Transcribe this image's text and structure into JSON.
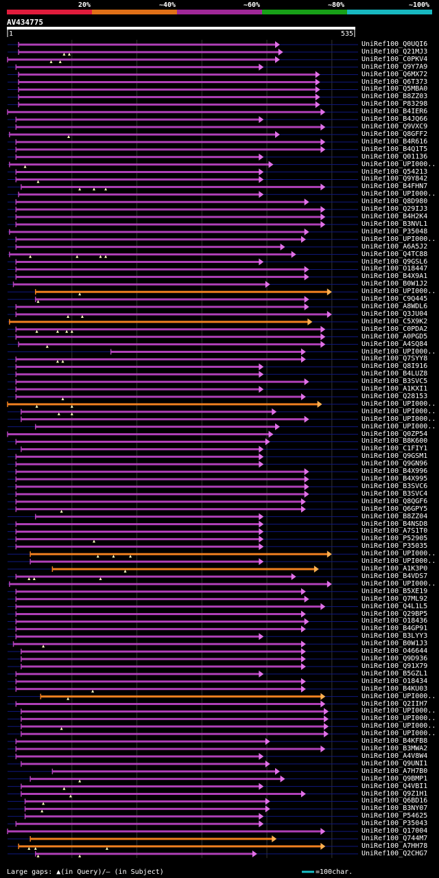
{
  "header": {
    "identity_scale": [
      {
        "label": "20%",
        "color": "#e01c3c"
      },
      {
        "label": "~40%",
        "color": "#e07018"
      },
      {
        "label": "~60%",
        "color": "#a02898"
      },
      {
        "label": "~80%",
        "color": "#18a018"
      },
      {
        "label": "~100%",
        "color": "#18b8c0"
      }
    ],
    "query_name": "AV434775",
    "ruler_start": "1",
    "ruler_end": "535"
  },
  "footer": {
    "large_gaps_text": "Large gaps: ▲(in Query)/– (in Subject)",
    "scale_text": "=100char."
  },
  "colors": {
    "magenta": "#b040b8",
    "orange": "#f08020",
    "magenta_head": "#e070e8",
    "orange_head": "#ffb050",
    "line": "#101880",
    "grid": "#333333",
    "gap_marker": "#ffffc0"
  },
  "chart_data": {
    "type": "alignment",
    "query_length": 535,
    "hits": [
      {
        "name": "UniRef100_Q0UQI6",
        "qs": 18,
        "qe": 420,
        "color": "magenta",
        "gaps": []
      },
      {
        "name": "UniRef100_Q21MJ3",
        "qs": 18,
        "qe": 425,
        "color": "magenta",
        "gaps": [
          88,
          96
        ]
      },
      {
        "name": "UniRef100_C0PKV4",
        "qs": 1,
        "qe": 420,
        "color": "magenta",
        "gaps": [
          68,
          82
        ]
      },
      {
        "name": "UniRef100_Q9Y7A9",
        "qs": 14,
        "qe": 395,
        "color": "magenta",
        "gaps": []
      },
      {
        "name": "UniRef100_Q6MX72",
        "qs": 18,
        "qe": 482,
        "color": "magenta",
        "gaps": []
      },
      {
        "name": "UniRef100_Q6T373",
        "qs": 18,
        "qe": 482,
        "color": "magenta",
        "gaps": []
      },
      {
        "name": "UniRef100_Q5MBA0",
        "qs": 18,
        "qe": 482,
        "color": "magenta",
        "gaps": []
      },
      {
        "name": "UniRef100_B8ZZ03",
        "qs": 18,
        "qe": 482,
        "color": "magenta",
        "gaps": []
      },
      {
        "name": "UniRef100_P83298",
        "qs": 18,
        "qe": 482,
        "color": "magenta",
        "gaps": []
      },
      {
        "name": "UniRef100_B4IER6",
        "qs": 1,
        "qe": 490,
        "color": "magenta",
        "gaps": []
      },
      {
        "name": "UniRef100_B4JQ66",
        "qs": 14,
        "qe": 395,
        "color": "magenta",
        "gaps": []
      },
      {
        "name": "UniRef100_Q9VXC9",
        "qs": 14,
        "qe": 490,
        "color": "magenta",
        "gaps": []
      },
      {
        "name": "UniRef100_Q8GFF2",
        "qs": 4,
        "qe": 420,
        "color": "magenta",
        "gaps": [
          95
        ]
      },
      {
        "name": "UniRef100_B4R616",
        "qs": 14,
        "qe": 490,
        "color": "magenta",
        "gaps": []
      },
      {
        "name": "UniRef100_B4Q1T5",
        "qs": 14,
        "qe": 490,
        "color": "magenta",
        "gaps": []
      },
      {
        "name": "UniRef100_Q01136",
        "qs": 14,
        "qe": 395,
        "color": "magenta",
        "gaps": []
      },
      {
        "name": "UniRef100_UPI000..",
        "qs": 4,
        "qe": 410,
        "color": "magenta",
        "gaps": [
          28
        ]
      },
      {
        "name": "UniRef100_Q54213",
        "qs": 14,
        "qe": 395,
        "color": "magenta",
        "gaps": []
      },
      {
        "name": "UniRef100_Q9Y842",
        "qs": 14,
        "qe": 395,
        "color": "magenta",
        "gaps": [
          48
        ]
      },
      {
        "name": "UniRef100_B4FHN7",
        "qs": 22,
        "qe": 490,
        "color": "magenta",
        "gaps": [
          112,
          134,
          152
        ]
      },
      {
        "name": "UniRef100_UPI000..",
        "qs": 18,
        "qe": 395,
        "color": "magenta",
        "gaps": []
      },
      {
        "name": "UniRef100_Q8D980",
        "qs": 14,
        "qe": 465,
        "color": "magenta",
        "gaps": []
      },
      {
        "name": "UniRef100_Q29IJ3",
        "qs": 14,
        "qe": 490,
        "color": "magenta",
        "gaps": []
      },
      {
        "name": "UniRef100_B4H2K4",
        "qs": 14,
        "qe": 490,
        "color": "magenta",
        "gaps": []
      },
      {
        "name": "UniRef100_B3NVL1",
        "qs": 14,
        "qe": 490,
        "color": "magenta",
        "gaps": []
      },
      {
        "name": "UniRef100_P35048",
        "qs": 4,
        "qe": 465,
        "color": "magenta",
        "gaps": []
      },
      {
        "name": "UniRef100_UPI000..",
        "qs": 14,
        "qe": 460,
        "color": "magenta",
        "gaps": []
      },
      {
        "name": "UniRef100_A6A5J2",
        "qs": 14,
        "qe": 428,
        "color": "magenta",
        "gaps": []
      },
      {
        "name": "UniRef100_Q4TC88",
        "qs": 4,
        "qe": 445,
        "color": "magenta",
        "gaps": [
          36,
          108,
          144,
          152
        ]
      },
      {
        "name": "UniRef100_Q9GSL6",
        "qs": 14,
        "qe": 395,
        "color": "magenta",
        "gaps": []
      },
      {
        "name": "UniRef100_O18447",
        "qs": 14,
        "qe": 465,
        "color": "magenta",
        "gaps": []
      },
      {
        "name": "UniRef100_B4X9A1",
        "qs": 14,
        "qe": 465,
        "color": "magenta",
        "gaps": []
      },
      {
        "name": "UniRef100_B0W1J2",
        "qs": 10,
        "qe": 405,
        "color": "magenta",
        "gaps": []
      },
      {
        "name": "UniRef100_UPI000..",
        "qs": 44,
        "qe": 500,
        "color": "orange",
        "gaps": [
          112
        ]
      },
      {
        "name": "UniRef100_C9Q445",
        "qs": 44,
        "qe": 465,
        "color": "magenta",
        "gaps": [
          48
        ]
      },
      {
        "name": "UniRef100_A8WDL6",
        "qs": 14,
        "qe": 465,
        "color": "magenta",
        "gaps": []
      },
      {
        "name": "UniRef100_Q3JU04",
        "qs": 14,
        "qe": 500,
        "color": "magenta",
        "gaps": [
          94,
          116
        ]
      },
      {
        "name": "UniRef100_C5X9K2",
        "qs": 4,
        "qe": 470,
        "color": "orange",
        "gaps": []
      },
      {
        "name": "UniRef100_C0PDA2",
        "qs": 14,
        "qe": 490,
        "color": "magenta",
        "gaps": [
          46,
          78,
          92,
          100
        ]
      },
      {
        "name": "UniRef100_A0PGD5",
        "qs": 14,
        "qe": 490,
        "color": "magenta",
        "gaps": []
      },
      {
        "name": "UniRef100_A4SQ84",
        "qs": 18,
        "qe": 490,
        "color": "magenta",
        "gaps": [
          62
        ]
      },
      {
        "name": "UniRef100_UPI000..",
        "qs": 160,
        "qe": 460,
        "color": "magenta",
        "gaps": []
      },
      {
        "name": "UniRef100_Q7SYY8",
        "qs": 14,
        "qe": 460,
        "color": "magenta",
        "gaps": [
          78,
          86
        ]
      },
      {
        "name": "UniRef100_Q8I916",
        "qs": 14,
        "qe": 395,
        "color": "magenta",
        "gaps": []
      },
      {
        "name": "UniRef100_B4LUZ8",
        "qs": 14,
        "qe": 395,
        "color": "magenta",
        "gaps": []
      },
      {
        "name": "UniRef100_B3SVC5",
        "qs": 14,
        "qe": 465,
        "color": "magenta",
        "gaps": []
      },
      {
        "name": "UniRef100_A1KXI1",
        "qs": 14,
        "qe": 395,
        "color": "magenta",
        "gaps": []
      },
      {
        "name": "UniRef100_Q28153",
        "qs": 14,
        "qe": 460,
        "color": "magenta",
        "gaps": [
          86
        ]
      },
      {
        "name": "UniRef100_UPI000..",
        "qs": 1,
        "qe": 485,
        "color": "orange",
        "gaps": [
          46,
          100
        ]
      },
      {
        "name": "UniRef100_UPI000..",
        "qs": 22,
        "qe": 415,
        "color": "magenta",
        "gaps": [
          80,
          100
        ]
      },
      {
        "name": "UniRef100_UPI000..",
        "qs": 22,
        "qe": 465,
        "color": "magenta",
        "gaps": []
      },
      {
        "name": "UniRef100_UPI000..",
        "qs": 44,
        "qe": 420,
        "color": "magenta",
        "gaps": []
      },
      {
        "name": "UniRef100_Q0ZP54",
        "qs": 1,
        "qe": 410,
        "color": "magenta",
        "gaps": []
      },
      {
        "name": "UniRef100_B8K600",
        "qs": 14,
        "qe": 405,
        "color": "magenta",
        "gaps": []
      },
      {
        "name": "UniRef100_C1FIY1",
        "qs": 22,
        "qe": 395,
        "color": "magenta",
        "gaps": []
      },
      {
        "name": "UniRef100_Q9GSM1",
        "qs": 14,
        "qe": 395,
        "color": "magenta",
        "gaps": []
      },
      {
        "name": "UniRef100_Q9GN96",
        "qs": 14,
        "qe": 395,
        "color": "magenta",
        "gaps": []
      },
      {
        "name": "UniRef100_B4X996",
        "qs": 14,
        "qe": 465,
        "color": "magenta",
        "gaps": []
      },
      {
        "name": "UniRef100_B4X995",
        "qs": 14,
        "qe": 465,
        "color": "magenta",
        "gaps": []
      },
      {
        "name": "UniRef100_B3SVC6",
        "qs": 14,
        "qe": 465,
        "color": "magenta",
        "gaps": []
      },
      {
        "name": "UniRef100_B3SVC4",
        "qs": 14,
        "qe": 465,
        "color": "magenta",
        "gaps": []
      },
      {
        "name": "UniRef100_Q8QGF6",
        "qs": 14,
        "qe": 460,
        "color": "magenta",
        "gaps": []
      },
      {
        "name": "UniRef100_Q6GPY5",
        "qs": 14,
        "qe": 460,
        "color": "magenta",
        "gaps": [
          84
        ]
      },
      {
        "name": "UniRef100_B8ZZ04",
        "qs": 44,
        "qe": 395,
        "color": "magenta",
        "gaps": []
      },
      {
        "name": "UniRef100_B4NSD8",
        "qs": 14,
        "qe": 395,
        "color": "magenta",
        "gaps": []
      },
      {
        "name": "UniRef100_A7S1T0",
        "qs": 14,
        "qe": 395,
        "color": "magenta",
        "gaps": []
      },
      {
        "name": "UniRef100_P52905",
        "qs": 14,
        "qe": 395,
        "color": "magenta",
        "gaps": [
          134
        ]
      },
      {
        "name": "UniRef100_P35035",
        "qs": 14,
        "qe": 395,
        "color": "magenta",
        "gaps": []
      },
      {
        "name": "UniRef100_UPI000..",
        "qs": 36,
        "qe": 500,
        "color": "orange",
        "gaps": [
          140,
          164,
          190
        ]
      },
      {
        "name": "UniRef100_UPI000..",
        "qs": 36,
        "qe": 395,
        "color": "magenta",
        "gaps": []
      },
      {
        "name": "UniRef100_A1K3P0",
        "qs": 70,
        "qe": 480,
        "color": "orange",
        "gaps": [
          182
        ]
      },
      {
        "name": "UniRef100_B4VDS7",
        "qs": 14,
        "qe": 445,
        "color": "magenta",
        "gaps": [
          34,
          42,
          144
        ]
      },
      {
        "name": "UniRef100_UPI000..",
        "qs": 4,
        "qe": 500,
        "color": "magenta",
        "gaps": []
      },
      {
        "name": "UniRef100_B5XE19",
        "qs": 14,
        "qe": 460,
        "color": "magenta",
        "gaps": []
      },
      {
        "name": "UniRef100_Q7ML92",
        "qs": 14,
        "qe": 465,
        "color": "magenta",
        "gaps": []
      },
      {
        "name": "UniRef100_Q4L1L5",
        "qs": 14,
        "qe": 490,
        "color": "magenta",
        "gaps": []
      },
      {
        "name": "UniRef100_Q29BP5",
        "qs": 14,
        "qe": 460,
        "color": "magenta",
        "gaps": []
      },
      {
        "name": "UniRef100_O18436",
        "qs": 14,
        "qe": 465,
        "color": "magenta",
        "gaps": []
      },
      {
        "name": "UniRef100_B4GP91",
        "qs": 14,
        "qe": 460,
        "color": "magenta",
        "gaps": []
      },
      {
        "name": "UniRef100_B3LYY3",
        "qs": 14,
        "qe": 395,
        "color": "magenta",
        "gaps": []
      },
      {
        "name": "UniRef100_B0W1J3",
        "qs": 10,
        "qe": 460,
        "color": "magenta",
        "gaps": [
          56
        ]
      },
      {
        "name": "UniRef100_O46644",
        "qs": 22,
        "qe": 460,
        "color": "magenta",
        "gaps": []
      },
      {
        "name": "UniRef100_Q9D936",
        "qs": 22,
        "qe": 460,
        "color": "magenta",
        "gaps": []
      },
      {
        "name": "UniRef100_Q91X79",
        "qs": 22,
        "qe": 460,
        "color": "magenta",
        "gaps": []
      },
      {
        "name": "UniRef100_B5GZL1",
        "qs": 14,
        "qe": 395,
        "color": "magenta",
        "gaps": []
      },
      {
        "name": "UniRef100_O18434",
        "qs": 14,
        "qe": 460,
        "color": "magenta",
        "gaps": []
      },
      {
        "name": "UniRef100_B4KU03",
        "qs": 14,
        "qe": 460,
        "color": "magenta",
        "gaps": [
          132
        ]
      },
      {
        "name": "UniRef100_UPI000..",
        "qs": 52,
        "qe": 490,
        "color": "orange",
        "gaps": [
          94
        ]
      },
      {
        "name": "UniRef100_Q2IIH7",
        "qs": 14,
        "qe": 490,
        "color": "magenta",
        "gaps": []
      },
      {
        "name": "UniRef100_UPI000..",
        "qs": 22,
        "qe": 495,
        "color": "magenta",
        "gaps": []
      },
      {
        "name": "UniRef100_UPI000..",
        "qs": 22,
        "qe": 495,
        "color": "magenta",
        "gaps": []
      },
      {
        "name": "UniRef100_UPI000..",
        "qs": 22,
        "qe": 495,
        "color": "magenta",
        "gaps": [
          84
        ]
      },
      {
        "name": "UniRef100_UPI000..",
        "qs": 22,
        "qe": 495,
        "color": "magenta",
        "gaps": []
      },
      {
        "name": "UniRef100_B4KFB8",
        "qs": 14,
        "qe": 405,
        "color": "magenta",
        "gaps": []
      },
      {
        "name": "UniRef100_B3MWA2",
        "qs": 14,
        "qe": 490,
        "color": "magenta",
        "gaps": []
      },
      {
        "name": "UniRef100_A4V8W4",
        "qs": 14,
        "qe": 395,
        "color": "magenta",
        "gaps": []
      },
      {
        "name": "UniRef100_Q9UNI1",
        "qs": 22,
        "qe": 405,
        "color": "magenta",
        "gaps": []
      },
      {
        "name": "UniRef100_A7H7B0",
        "qs": 70,
        "qe": 420,
        "color": "magenta",
        "gaps": []
      },
      {
        "name": "UniRef100_Q9BMP1",
        "qs": 36,
        "qe": 428,
        "color": "magenta",
        "gaps": [
          112
        ]
      },
      {
        "name": "UniRef100_Q4VBI1",
        "qs": 22,
        "qe": 395,
        "color": "magenta",
        "gaps": [
          88
        ]
      },
      {
        "name": "UniRef100_Q9Z1H1",
        "qs": 22,
        "qe": 460,
        "color": "magenta",
        "gaps": [
          98
        ]
      },
      {
        "name": "UniRef100_Q6BD16",
        "qs": 28,
        "qe": 405,
        "color": "magenta",
        "gaps": [
          56
        ]
      },
      {
        "name": "UniRef100_B3NY07",
        "qs": 28,
        "qe": 405,
        "color": "magenta",
        "gaps": [
          54
        ]
      },
      {
        "name": "UniRef100_P54625",
        "qs": 28,
        "qe": 395,
        "color": "magenta",
        "gaps": []
      },
      {
        "name": "UniRef100_P35043",
        "qs": 14,
        "qe": 395,
        "color": "magenta",
        "gaps": []
      },
      {
        "name": "UniRef100_Q17004",
        "qs": 1,
        "qe": 490,
        "color": "magenta",
        "gaps": []
      },
      {
        "name": "UniRef100_Q744M7",
        "qs": 36,
        "qe": 415,
        "color": "orange",
        "gaps": []
      },
      {
        "name": "UniRef100_A7HH78",
        "qs": 18,
        "qe": 490,
        "color": "orange",
        "gaps": [
          34,
          44,
          154
        ]
      },
      {
        "name": "UniRef100_Q2CHG7",
        "qs": 44,
        "qe": 385,
        "color": "magenta",
        "gaps": [
          48,
          112
        ]
      }
    ]
  }
}
